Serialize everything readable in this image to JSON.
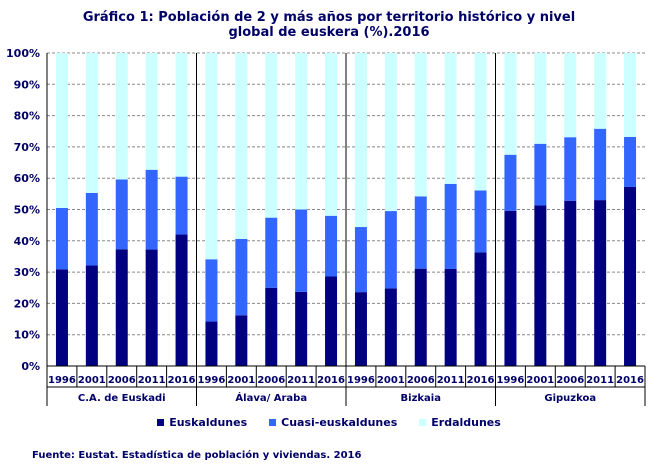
{
  "chart_data": {
    "type": "bar",
    "stacked": true,
    "title": "Gráfico 1: Población de 2 y más años por territorio histórico y nivel global de euskera (%).2016",
    "title_lines": [
      "Gráfico 1: Población de 2 y más años por territorio histórico y nivel",
      "global de euskera (%).2016"
    ],
    "groups": [
      "C.A. de Euskadi",
      "Álava/ Araba",
      "Bizkaia",
      "Gipuzkoa"
    ],
    "categories": [
      "1996",
      "2001",
      "2006",
      "2011",
      "2016"
    ],
    "ylim": [
      0,
      100
    ],
    "yticks": [
      "0%",
      "10%",
      "20%",
      "30%",
      "40%",
      "50%",
      "60%",
      "70%",
      "80%",
      "90%",
      "100%"
    ],
    "grid": true,
    "legend_position": "bottom",
    "series": [
      {
        "name": "Euskaldunes",
        "color": "#000080",
        "values": [
          [
            30.9,
            32.1,
            37.3,
            37.2,
            42.0
          ],
          [
            14.2,
            16.2,
            25.0,
            23.7,
            28.6
          ],
          [
            23.6,
            24.8,
            31.1,
            31.0,
            36.3
          ],
          [
            49.6,
            51.3,
            52.8,
            53.0,
            57.2
          ]
        ]
      },
      {
        "name": "Cuasi-euskaldunes",
        "color": "#3366FF",
        "values": [
          [
            19.6,
            23.2,
            22.3,
            25.5,
            18.5
          ],
          [
            19.9,
            24.4,
            22.4,
            26.3,
            19.4
          ],
          [
            20.8,
            24.7,
            23.1,
            27.2,
            19.8
          ],
          [
            17.9,
            19.7,
            20.3,
            22.8,
            16.0
          ]
        ]
      },
      {
        "name": "Erdaldunes",
        "color": "#CCFFFF",
        "values": [
          [
            49.5,
            44.7,
            40.4,
            37.3,
            39.5
          ],
          [
            65.9,
            59.4,
            52.6,
            50.0,
            52.0
          ],
          [
            55.6,
            50.5,
            45.8,
            41.8,
            43.9
          ],
          [
            32.5,
            29.0,
            26.9,
            24.2,
            26.8
          ]
        ]
      }
    ]
  },
  "source": "Fuente: Eustat. Estadística de población y viviendas. 2016"
}
